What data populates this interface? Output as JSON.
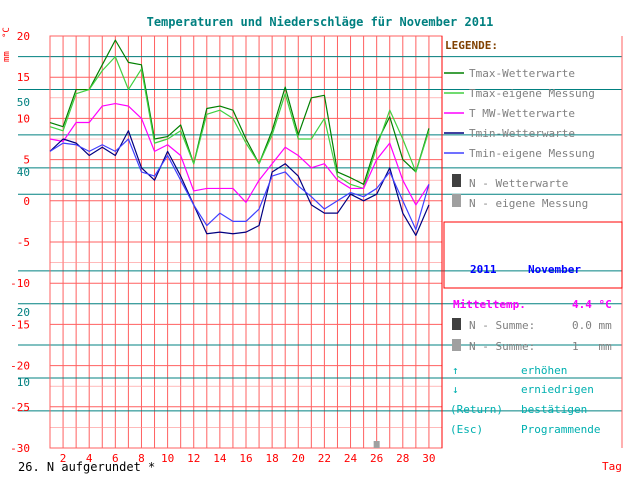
{
  "title": "Temperaturen und Niederschläge für November 2011",
  "y_unit_left": "mm",
  "y_unit_right": "°C",
  "x_unit": "Tag",
  "footer_note": "26. N aufgerundet *",
  "legend": {
    "heading": "LEGENDE:",
    "items": [
      {
        "label": "Tmax-Wetterwarte",
        "color": "#008000"
      },
      {
        "label": "Tmax-eigene Messung",
        "color": "#40d040"
      },
      {
        "label": "T MW-Wetterwarte",
        "color": "#ff00ff"
      },
      {
        "label": "Tmin-Wetterwarte",
        "color": "#000080"
      },
      {
        "label": "Tmin-eigene Messung",
        "color": "#4040ff"
      },
      {
        "label": "N - Wetterwarte",
        "color": "#404040"
      },
      {
        "label": "N - eigene Messung",
        "color": "#a0a0a0"
      }
    ]
  },
  "period": {
    "year": "2011",
    "month": "November"
  },
  "stats": {
    "mean_label": "Mitteltemp.",
    "mean_value": "4.4 °C",
    "sum1_label": "N - Summe:",
    "sum1_value": "0.0 mm",
    "sum2_label": "N - Summe:",
    "sum2_value": "1   mm"
  },
  "keys": [
    {
      "key": "↑",
      "action": "erhöhen"
    },
    {
      "key": "↓",
      "action": "erniedrigen"
    },
    {
      "key": "(Return)",
      "action": "bestätigen"
    },
    {
      "key": "(Esc)",
      "action": "Programmende"
    }
  ],
  "colors": {
    "grid": "#ff6060",
    "teal": "#008080",
    "title": "#008080",
    "axis_text": "#ff0000",
    "legend_heading": "#804000",
    "panel_border": "#ff0000",
    "period_text": "#0000ff",
    "stats_text": "#ff00ff",
    "keys_text": "#00b0b0"
  },
  "chart_data": {
    "type": "line",
    "xlabel": "Tag",
    "ylabel": "°C",
    "xlim": [
      1,
      31
    ],
    "ylim": [
      -30,
      20
    ],
    "x_ticks": [
      2,
      4,
      6,
      8,
      10,
      12,
      14,
      16,
      18,
      20,
      22,
      24,
      26,
      28,
      30
    ],
    "temp_ticks": [
      20,
      15,
      10,
      5,
      0,
      -5,
      -10,
      -15,
      -20,
      -25,
      -30
    ],
    "precip_ticks": [
      {
        "label": "50",
        "temp": 12
      },
      {
        "label": "40",
        "temp": 3.5
      },
      {
        "label": "20",
        "temp": -13.5
      },
      {
        "label": "10",
        "temp": -22
      }
    ],
    "x": [
      1,
      2,
      3,
      4,
      5,
      6,
      7,
      8,
      9,
      10,
      11,
      12,
      13,
      14,
      15,
      16,
      17,
      18,
      19,
      20,
      21,
      22,
      23,
      24,
      25,
      26,
      27,
      28,
      29,
      30
    ],
    "series": [
      {
        "name": "Tmax-Wetterwarte",
        "color": "#008000",
        "values": [
          9.5,
          9.0,
          13.5,
          13.5,
          16.5,
          19.5,
          16.8,
          16.5,
          7.5,
          7.8,
          9.2,
          4.5,
          11.2,
          11.5,
          11.0,
          7.5,
          4.5,
          8.5,
          13.8,
          8.0,
          12.5,
          12.8,
          3.5,
          2.8,
          2.0,
          7.0,
          10.2,
          5.0,
          3.5,
          8.8
        ]
      },
      {
        "name": "Tmax-eigene Messung",
        "color": "#40d040",
        "values": [
          9.0,
          8.5,
          13.0,
          13.5,
          15.8,
          17.5,
          13.5,
          16.0,
          7.0,
          7.5,
          8.5,
          4.5,
          10.5,
          11.0,
          10.0,
          7.0,
          4.5,
          8.0,
          13.0,
          7.5,
          7.5,
          10.0,
          3.0,
          2.0,
          1.5,
          6.5,
          11.0,
          7.5,
          3.5,
          8.5
        ]
      },
      {
        "name": "T MW-Wetterwarte",
        "color": "#ff00ff",
        "values": [
          7.5,
          7.2,
          9.5,
          9.5,
          11.5,
          11.8,
          11.5,
          10.0,
          6.0,
          6.8,
          5.5,
          1.2,
          1.5,
          1.5,
          1.5,
          -0.2,
          2.5,
          4.5,
          6.5,
          5.5,
          4.0,
          4.5,
          2.5,
          1.5,
          1.5,
          5.0,
          7.0,
          2.5,
          -0.5,
          2.0
        ]
      },
      {
        "name": "Tmin-Wetterwarte",
        "color": "#000080",
        "values": [
          6.0,
          7.5,
          7.0,
          5.5,
          6.5,
          5.5,
          8.5,
          4.0,
          2.5,
          6.0,
          3.0,
          -0.5,
          -4.0,
          -3.8,
          -4.0,
          -3.8,
          -3.0,
          3.5,
          4.5,
          3.0,
          -0.5,
          -1.5,
          -1.5,
          0.8,
          0.0,
          0.8,
          4.0,
          -1.5,
          -4.2,
          -0.5
        ]
      },
      {
        "name": "Tmin-eigene Messung",
        "color": "#4040ff",
        "values": [
          6.0,
          7.0,
          6.8,
          6.0,
          6.8,
          6.0,
          7.5,
          3.5,
          3.0,
          5.5,
          2.5,
          -0.5,
          -3.0,
          -1.5,
          -2.5,
          -2.5,
          -1.0,
          3.0,
          3.5,
          1.8,
          0.5,
          -1.0,
          0.0,
          1.0,
          0.5,
          1.5,
          3.5,
          0.0,
          -3.5,
          2.0
        ]
      }
    ],
    "precip_bars": [
      {
        "day": 26,
        "value": 1,
        "series": "N - eigene Messung",
        "color": "#a0a0a0"
      }
    ]
  }
}
